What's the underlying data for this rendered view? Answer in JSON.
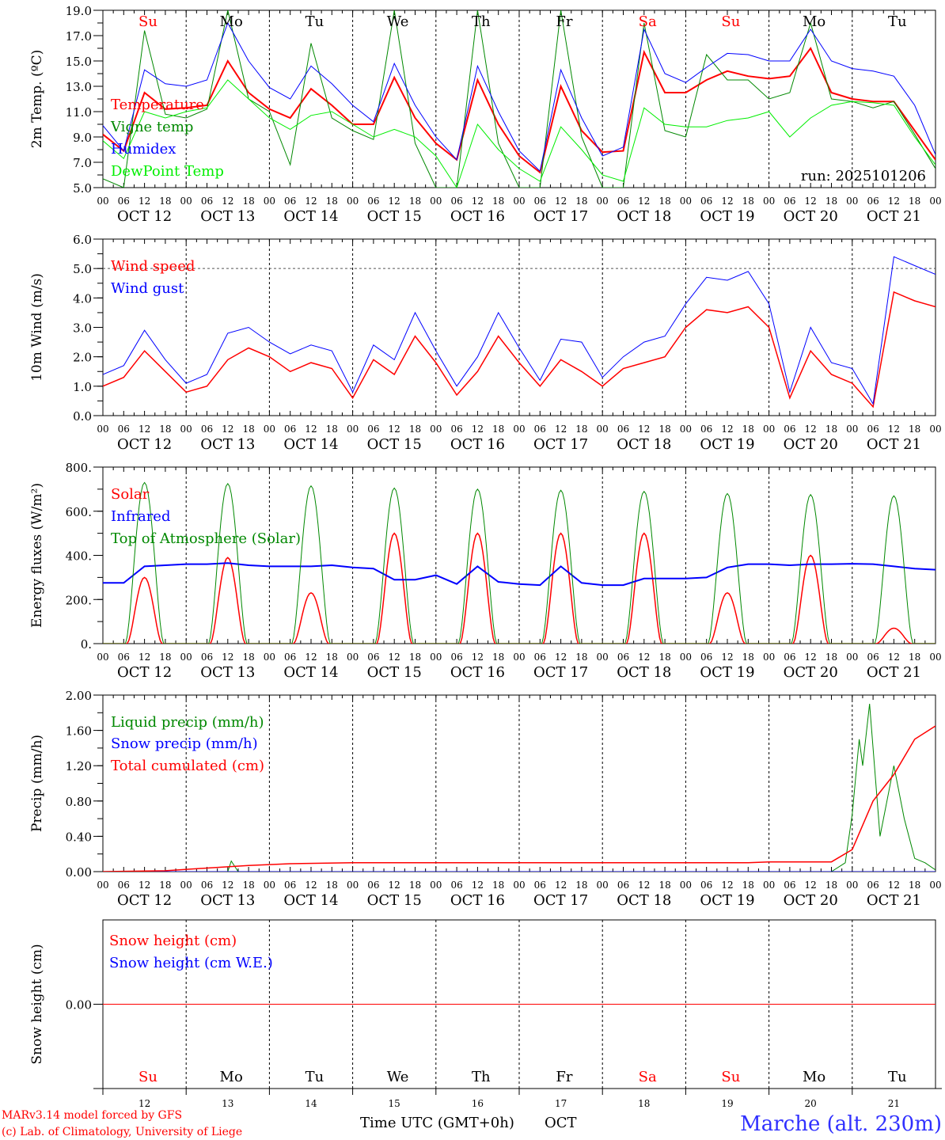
{
  "page": {
    "credit1": "MARv3.14 model forced by GFS",
    "credit2": "(c) Lab. of Climatology, University of Liege",
    "xlabel": "Time UTC (GMT+0h)",
    "month": "OCT",
    "station": "Marche (alt. 230m)",
    "run": "run: 2025101206"
  },
  "days": [
    {
      "name": "Su",
      "color": "#ff0000",
      "date": "OCT 12",
      "num": "12"
    },
    {
      "name": "Mo",
      "color": "#000000",
      "date": "OCT 13",
      "num": "13"
    },
    {
      "name": "Tu",
      "color": "#000000",
      "date": "OCT 14",
      "num": "14"
    },
    {
      "name": "We",
      "color": "#000000",
      "date": "OCT 15",
      "num": "15"
    },
    {
      "name": "Th",
      "color": "#000000",
      "date": "OCT 16",
      "num": "16"
    },
    {
      "name": "Fr",
      "color": "#000000",
      "date": "OCT 17",
      "num": "17"
    },
    {
      "name": "Sa",
      "color": "#ff0000",
      "date": "OCT 18",
      "num": "18"
    },
    {
      "name": "Su",
      "color": "#ff0000",
      "date": "OCT 19",
      "num": "19"
    },
    {
      "name": "Mo",
      "color": "#000000",
      "date": "OCT 20",
      "num": "20"
    },
    {
      "name": "Tu",
      "color": "#000000",
      "date": "OCT 21",
      "num": "21"
    }
  ],
  "hour_labels": [
    "00",
    "06",
    "12",
    "18"
  ],
  "final_hour_label": "00",
  "chart_data": [
    {
      "type": "line",
      "ylabel": "2m Temp. (ºC)",
      "ylim": [
        5,
        19
      ],
      "yticks": [
        "5.0",
        "7.0",
        "9.0",
        "11.0",
        "13.0",
        "15.0",
        "17.0",
        "19.0"
      ],
      "x_step_hours": 6,
      "series": [
        {
          "name": "Temperature",
          "color": "#ff0000",
          "width": 2,
          "values": [
            9.2,
            7.9,
            12.5,
            11.2,
            11.3,
            11.5,
            15.0,
            12.5,
            11.2,
            10.5,
            12.8,
            11.5,
            10.0,
            10.0,
            13.7,
            10.5,
            8.5,
            7.2,
            13.5,
            10.0,
            7.5,
            6.2,
            13.0,
            9.5,
            7.8,
            7.9,
            15.7,
            12.5,
            12.5,
            13.5,
            14.2,
            13.8,
            13.6,
            13.8,
            16.0,
            12.5,
            12.0,
            11.8,
            11.8,
            9.5,
            7.2
          ]
        },
        {
          "name": "Vigne temp",
          "color": "#008800",
          "width": 1,
          "values": [
            5.7,
            5.0,
            17.4,
            10.8,
            10.5,
            11.2,
            19,
            12.0,
            11.0,
            6.8,
            16.4,
            10.5,
            9.5,
            8.8,
            19,
            8.5,
            5.0,
            5.0,
            19,
            8.5,
            5.0,
            5.0,
            19,
            9.0,
            5.0,
            5.0,
            18,
            9.5,
            9.0,
            15.5,
            13.5,
            13.5,
            12.0,
            12.5,
            18,
            12.0,
            11.8,
            11.3,
            11.8,
            9.2,
            6.5
          ]
        },
        {
          "name": "Humidex",
          "color": "#0000ff",
          "width": 1,
          "values": [
            9.9,
            7.9,
            14.3,
            13.2,
            13.0,
            13.5,
            18.0,
            15.0,
            12.9,
            12.0,
            14.6,
            13.2,
            11.5,
            10.2,
            14.8,
            11.5,
            9.0,
            7.2,
            14.6,
            11.0,
            7.9,
            6.3,
            14.3,
            10.5,
            7.5,
            8.2,
            17.5,
            14.0,
            13.3,
            14.5,
            15.6,
            15.5,
            15.0,
            15.0,
            17.5,
            15.0,
            14.4,
            14.2,
            13.8,
            11.5,
            7.6
          ]
        },
        {
          "name": "DewPoint Temp",
          "color": "#00ee00",
          "width": 1,
          "values": [
            8.7,
            7.3,
            11.0,
            10.5,
            11.0,
            11.3,
            13.5,
            12.0,
            10.5,
            9.6,
            10.7,
            11.0,
            10.0,
            9.0,
            9.6,
            9.0,
            7.5,
            5.0,
            10.0,
            8.0,
            6.5,
            5.5,
            9.8,
            8.0,
            6.0,
            5.5,
            11.3,
            10.0,
            9.8,
            9.8,
            10.3,
            10.5,
            11.0,
            9.0,
            10.5,
            11.5,
            11.8,
            11.7,
            11.5,
            9.0,
            6.8
          ]
        }
      ]
    },
    {
      "type": "line",
      "ylabel": "10m Wind (m/s)",
      "ylim": [
        0,
        6
      ],
      "yticks": [
        "0.0",
        "1.0",
        "2.0",
        "3.0",
        "4.0",
        "5.0",
        "6.0"
      ],
      "x_step_hours": 6,
      "ref_line": 5.0,
      "series": [
        {
          "name": "Wind speed",
          "color": "#ff0000",
          "width": 1.5,
          "values": [
            1.0,
            1.3,
            2.2,
            1.5,
            0.8,
            1.0,
            1.9,
            2.3,
            2.0,
            1.5,
            1.8,
            1.6,
            0.6,
            1.9,
            1.4,
            2.7,
            1.8,
            0.7,
            1.5,
            2.7,
            1.8,
            1.0,
            1.9,
            1.5,
            1.0,
            1.6,
            1.8,
            2.0,
            3.0,
            3.6,
            3.5,
            3.7,
            3.0,
            0.6,
            2.2,
            1.4,
            1.1,
            0.3,
            4.2,
            3.9,
            3.7
          ]
        },
        {
          "name": "Wind gust",
          "color": "#0000ff",
          "width": 1,
          "values": [
            1.4,
            1.7,
            2.9,
            1.9,
            1.1,
            1.4,
            2.8,
            3.0,
            2.5,
            2.1,
            2.4,
            2.2,
            0.8,
            2.4,
            1.9,
            3.5,
            2.2,
            1.0,
            2.0,
            3.5,
            2.3,
            1.2,
            2.6,
            2.5,
            1.3,
            2.0,
            2.5,
            2.7,
            3.8,
            4.7,
            4.6,
            4.9,
            3.8,
            0.8,
            3.0,
            1.8,
            1.6,
            0.4,
            5.4,
            5.1,
            4.8
          ]
        }
      ]
    },
    {
      "type": "line",
      "ylabel": "Energy fluxes (W/m²)",
      "ylim": [
        0,
        800
      ],
      "yticks": [
        "0.",
        "200.",
        "400.",
        "600.",
        "800."
      ],
      "series": [
        {
          "name": "Solar",
          "color": "#ff0000",
          "width": 1.5,
          "daily_peak": [
            300,
            390,
            230,
            500,
            500,
            500,
            500,
            230,
            400,
            70
          ],
          "day_window_hours": [
            7,
            17
          ]
        },
        {
          "name": "Infrared",
          "color": "#0000ff",
          "width": 2,
          "x_step_hours": 6,
          "values": [
            275,
            275,
            350,
            355,
            360,
            360,
            365,
            355,
            350,
            350,
            350,
            355,
            345,
            340,
            290,
            290,
            310,
            270,
            350,
            280,
            270,
            265,
            350,
            275,
            265,
            265,
            295,
            295,
            295,
            300,
            345,
            360,
            360,
            355,
            360,
            360,
            362,
            360,
            350,
            340,
            335
          ]
        },
        {
          "name": "Top of Atmosphere (Solar)",
          "color": "#008800",
          "width": 1,
          "daily_peak": [
            730,
            725,
            715,
            705,
            700,
            695,
            690,
            680,
            675,
            670
          ],
          "day_window_hours": [
            6.5,
            17.5
          ]
        }
      ]
    },
    {
      "type": "line",
      "ylabel": "Precip (mm/h)",
      "ylim": [
        0,
        2
      ],
      "yticks": [
        "0.00",
        "0.40",
        "0.80",
        "1.20",
        "1.60",
        "2.00"
      ],
      "series": [
        {
          "name": "Liquid precip (mm/h)",
          "color": "#008800",
          "width": 1,
          "points": [
            [
              0,
              0
            ],
            [
              36,
              0
            ],
            [
              37,
              0.12
            ],
            [
              39,
              0
            ],
            [
              210,
              0
            ],
            [
              214,
              0.1
            ],
            [
              216,
              0.65
            ],
            [
              218,
              1.5
            ],
            [
              219,
              1.2
            ],
            [
              221,
              1.9
            ],
            [
              224,
              0.4
            ],
            [
              228,
              1.2
            ],
            [
              231,
              0.6
            ],
            [
              234,
              0.15
            ],
            [
              237,
              0.1
            ],
            [
              240,
              0.02
            ]
          ]
        },
        {
          "name": "Snow precip (mm/h)",
          "color": "#0000ff",
          "width": 1,
          "points": [
            [
              0,
              0
            ],
            [
              240,
              0
            ]
          ]
        },
        {
          "name": "Total cumulated (cm)",
          "color": "#ff0000",
          "width": 1.5,
          "points": [
            [
              0,
              0
            ],
            [
              18,
              0.01
            ],
            [
              30,
              0.04
            ],
            [
              42,
              0.07
            ],
            [
              54,
              0.09
            ],
            [
              72,
              0.1
            ],
            [
              186,
              0.1
            ],
            [
              192,
              0.11
            ],
            [
              210,
              0.11
            ],
            [
              216,
              0.25
            ],
            [
              222,
              0.8
            ],
            [
              228,
              1.1
            ],
            [
              234,
              1.5
            ],
            [
              240,
              1.65
            ]
          ]
        }
      ]
    },
    {
      "type": "line",
      "ylabel": "Snow height (cm)",
      "ylim": [
        -1,
        1
      ],
      "yticks": [
        "0.00"
      ],
      "ytick_values": [
        0
      ],
      "series": [
        {
          "name": "Snow height (cm)",
          "color": "#ff0000",
          "width": 1,
          "points": [
            [
              0,
              0
            ],
            [
              240,
              0
            ]
          ]
        },
        {
          "name": "Snow height (cm W.E.)",
          "color": "#0000ff",
          "width": 1,
          "points": []
        }
      ]
    }
  ]
}
